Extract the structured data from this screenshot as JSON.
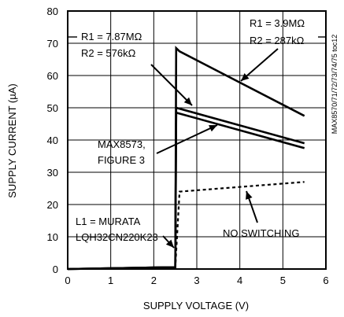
{
  "chart_data": {
    "type": "line",
    "xlabel": "SUPPLY VOLTAGE (V)",
    "ylabel": "SUPPLY CURRENT (µA)",
    "xlim": [
      0,
      6
    ],
    "ylim": [
      0,
      80
    ],
    "x_ticks": [
      "0",
      "1",
      "2",
      "3",
      "4",
      "5",
      "6"
    ],
    "y_ticks": [
      "0",
      "10",
      "20",
      "30",
      "40",
      "50",
      "60",
      "70",
      "80"
    ],
    "grid": true,
    "series": [
      {
        "id": "r1-3p9",
        "style": "solid",
        "x": [
          0,
          2.2,
          2.5,
          2.52,
          2.6,
          5.5
        ],
        "y": [
          0,
          0.5,
          0.5,
          68.5,
          67.5,
          47.5
        ]
      },
      {
        "id": "r1-7p87-upper",
        "style": "solid",
        "x": [
          0,
          2.2,
          2.5,
          2.52,
          5.5
        ],
        "y": [
          0,
          0.5,
          0.5,
          50,
          39
        ]
      },
      {
        "id": "r1-7p87-lower",
        "style": "solid",
        "x": [
          0,
          2.2,
          2.5,
          2.52,
          5.5
        ],
        "y": [
          0,
          0.5,
          0.5,
          48.5,
          37.5
        ]
      },
      {
        "id": "no-switching",
        "style": "dotted",
        "x": [
          2.2,
          2.45,
          2.5,
          2.6,
          5.5
        ],
        "y": [
          0.3,
          0.5,
          0.5,
          24,
          27
        ]
      }
    ],
    "annotations": {
      "r1_787_line1": "R1 = 7.87MΩ",
      "r1_787_line2": "R2 = 576kΩ",
      "r1_39_line1": "R1 = 3.9MΩ",
      "r1_39_line2": "R2 = 287kΩ",
      "max_line1": "MAX8573,",
      "max_line2": "FIGURE 3",
      "l1_line1": "L1 = MURATA",
      "l1_line2": "LQH32CN220K23",
      "no_switching": "NO SWITCHING",
      "side_id": "MAX8570/71/72/73/74/75 toc12"
    }
  }
}
